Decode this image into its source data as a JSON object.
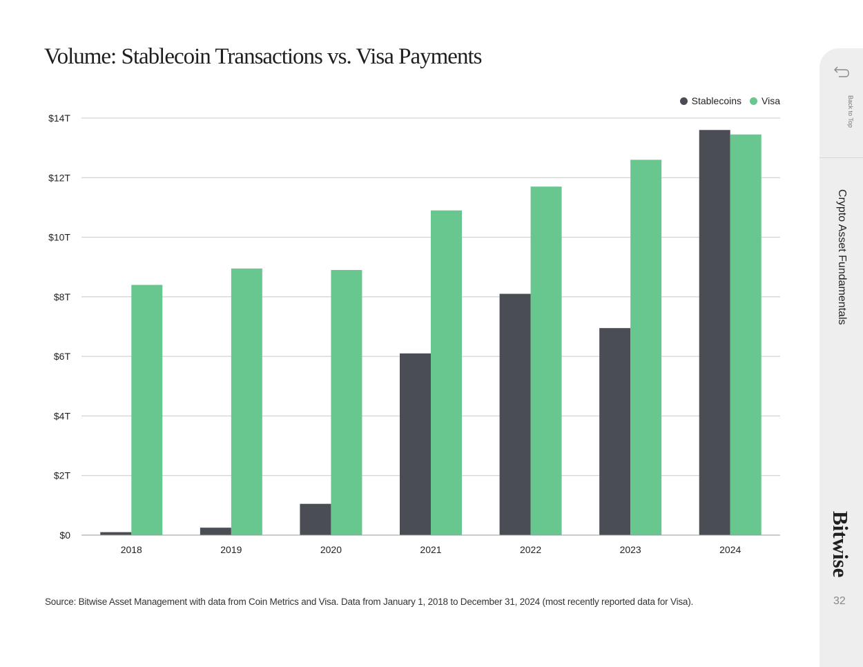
{
  "page": {
    "title": "Volume: Stablecoin Transactions vs. Visa Payments",
    "source": "Source: Bitwise Asset Management with data from Coin Metrics and Visa. Data from January 1, 2018 to December 31, 2024 (most recently reported data for Visa).",
    "page_number": "32"
  },
  "sidebar": {
    "back_label": "Back to Top",
    "back_icon": "return-arrow-icon",
    "section_label": "Crypto Asset Fundamentals",
    "brand": "Bitwise"
  },
  "colors": {
    "stablecoins": "#4a4d54",
    "visa": "#68c78f",
    "grid": "#c8c8c8"
  },
  "chart_data": {
    "type": "bar",
    "categories": [
      "2018",
      "2019",
      "2020",
      "2021",
      "2022",
      "2023",
      "2024"
    ],
    "series": [
      {
        "name": "Stablecoins",
        "values": [
          0.1,
          0.25,
          1.05,
          6.1,
          8.1,
          6.95,
          13.6
        ]
      },
      {
        "name": "Visa",
        "values": [
          8.4,
          8.95,
          8.9,
          10.9,
          11.7,
          12.6,
          13.45
        ]
      }
    ],
    "ylim": [
      0,
      14
    ],
    "yticks": [
      0,
      2,
      4,
      6,
      8,
      10,
      12,
      14
    ],
    "ytick_labels": [
      "$0",
      "$2T",
      "$4T",
      "$6T",
      "$8T",
      "$10T",
      "$12T",
      "$14T"
    ],
    "grid": true,
    "legend_position": "top-right"
  }
}
